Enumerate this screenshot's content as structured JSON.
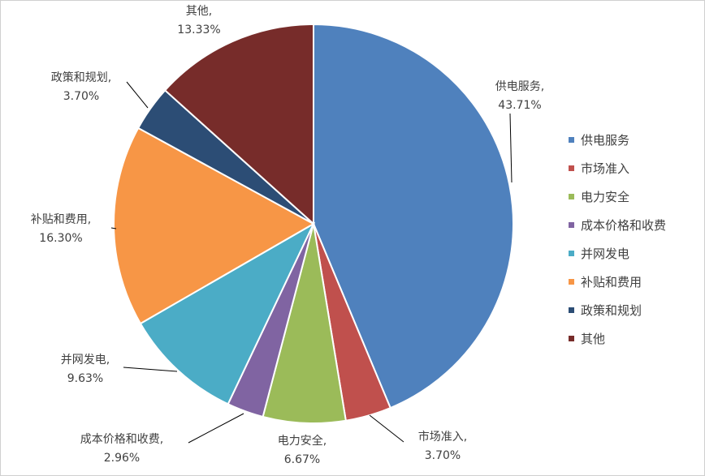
{
  "chart_data": {
    "type": "pie",
    "categories": [
      "供电服务",
      "市场准入",
      "电力安全",
      "成本价格和收费",
      "并网发电",
      "补贴和费用",
      "政策和规划",
      "其他"
    ],
    "values": [
      43.71,
      3.7,
      6.67,
      2.96,
      9.63,
      16.3,
      3.7,
      13.33
    ],
    "data_labels": [
      "43.71%",
      "3.70%",
      "6.67%",
      "2.96%",
      "9.63%",
      "16.30%",
      "3.70%",
      "13.33%"
    ],
    "label_names": [
      "供电服务,",
      "市场准入,",
      "电力安全,",
      "成本价格和收费,",
      "并网发电,",
      "补贴和费用,",
      "政策和规划,",
      "其他,"
    ],
    "colors": [
      "#4F81BD",
      "#C0504D",
      "#9BBB59",
      "#8064A2",
      "#4BACC6",
      "#F79646",
      "#2C4D75",
      "#772C2A"
    ],
    "legend": {
      "position": "right",
      "entries": [
        "供电服务",
        "市场准入",
        "电力安全",
        "成本价格和收费",
        "并网发电",
        "补贴和费用",
        "政策和规划",
        "其他"
      ]
    },
    "start_angle": "top, clockwise"
  }
}
